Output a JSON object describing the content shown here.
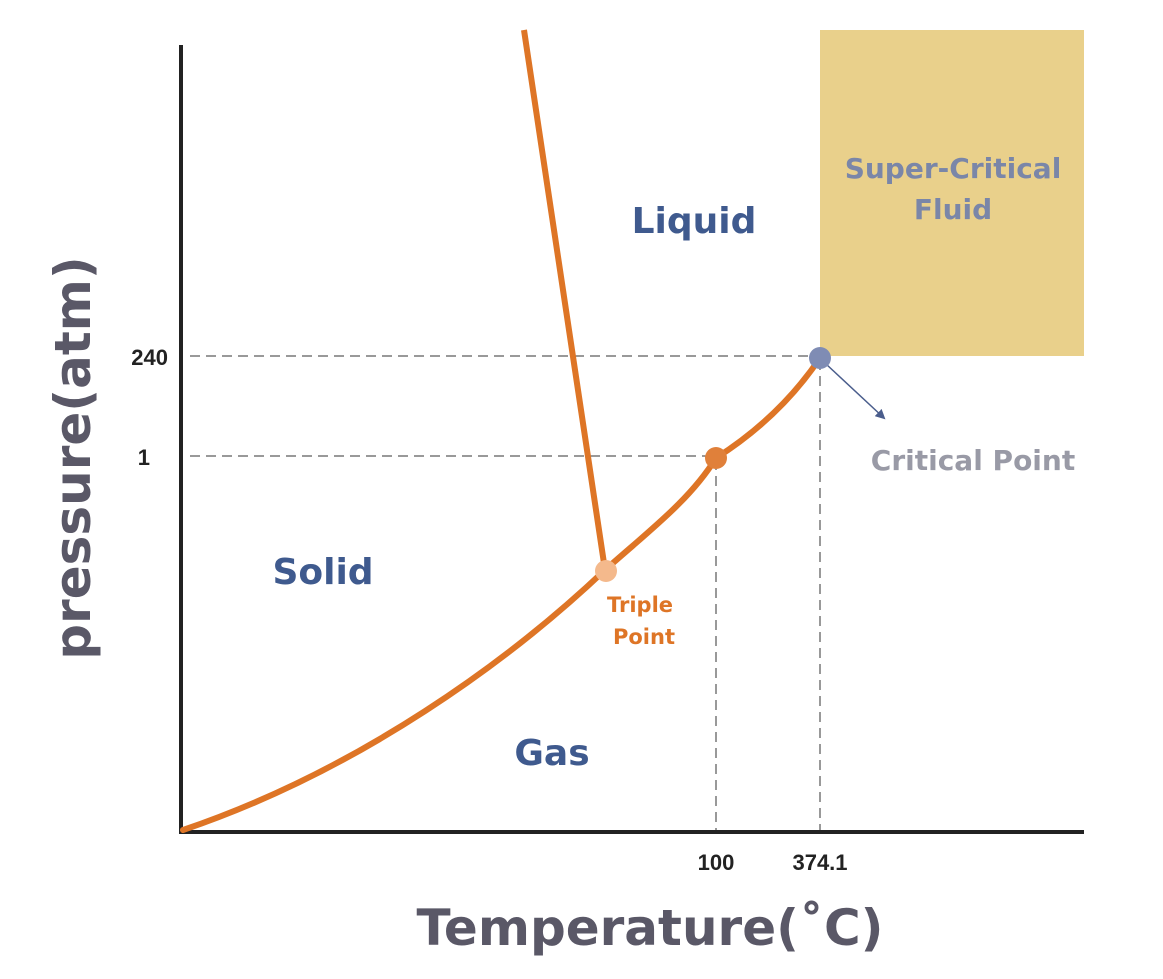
{
  "axes": {
    "x_title": "Temperature(˚C)",
    "y_title": "pressure(atm)",
    "x_ticks": [
      "100",
      "374.1"
    ],
    "y_ticks": [
      "240",
      "1"
    ]
  },
  "regions": {
    "solid": "Solid",
    "liquid": "Liquid",
    "gas": "Gas",
    "supercritical_line1": "Super-Critical",
    "supercritical_line2": "Fluid"
  },
  "points": {
    "triple_line1": "Triple",
    "triple_line2": "Point",
    "critical": "Critical Point"
  },
  "colors": {
    "curve": "#de7526",
    "supercritical_fill": "#e9d08b",
    "critical_dot": "#7f8cb4",
    "boiling_dot": "#e0803a",
    "triple_dot": "#f4b98c",
    "arrow": "#4a5d8c",
    "axis": "#222222"
  }
}
